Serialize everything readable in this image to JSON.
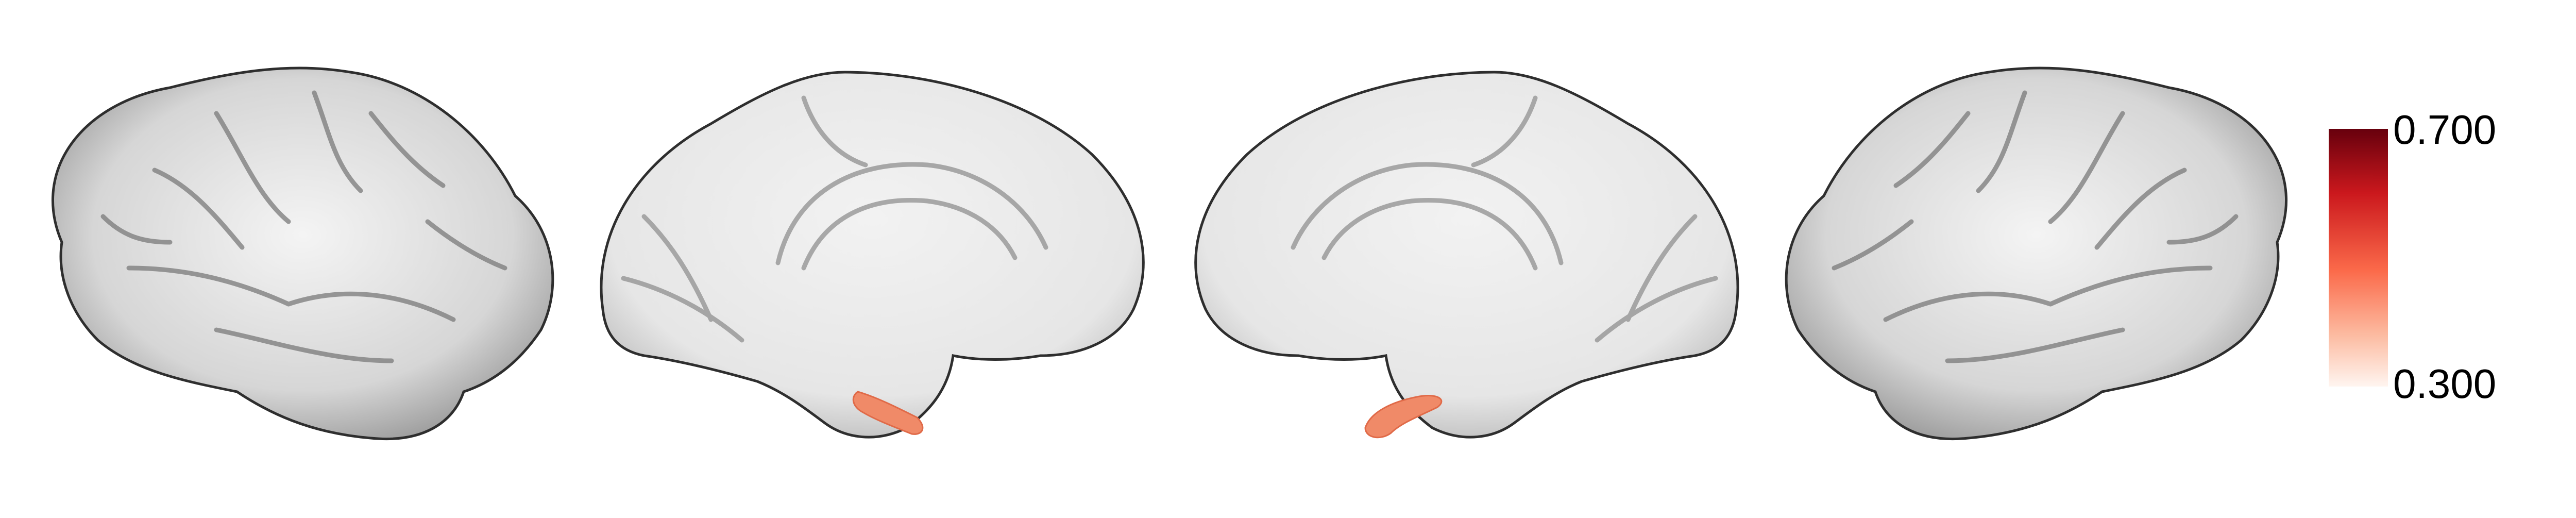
{
  "figure": {
    "views": [
      "left-lateral",
      "left-medial",
      "right-medial",
      "right-lateral"
    ],
    "surface_color": "#e8e8e8",
    "outline_color": "#3a3a3a",
    "highlight_color": "#f08a68",
    "background": "#ffffff"
  },
  "colorbar": {
    "max_label": "0.700",
    "min_label": "0.300",
    "vmax": 0.7,
    "vmin": 0.3,
    "colormap": "Reds",
    "color_top": "#67000d",
    "color_mid": "#ef3b2c",
    "color_low": "#fcbba1",
    "color_bottom": "#fff5f0"
  }
}
